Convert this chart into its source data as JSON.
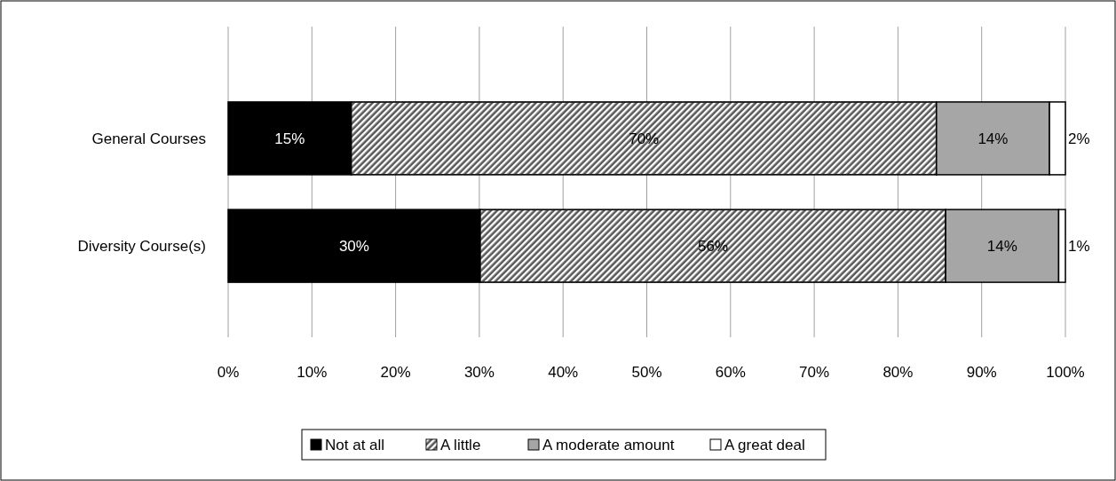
{
  "chart_data": {
    "type": "bar",
    "orientation": "horizontal",
    "stacked": true,
    "categories": [
      "General Courses",
      "Diversity Course(s)"
    ],
    "series": [
      {
        "name": "Not at all",
        "color": "#000000",
        "values": [
          14.7,
          30.1
        ],
        "value_labels": [
          "15%",
          "30%"
        ]
      },
      {
        "name": "A little",
        "color": "#595959",
        "values": [
          69.9,
          55.6
        ],
        "value_labels": [
          "70%",
          "56%"
        ]
      },
      {
        "name": "A moderate amount",
        "color": "#a6a6a6",
        "values": [
          13.5,
          13.5
        ],
        "value_labels": [
          "14%",
          "14%"
        ]
      },
      {
        "name": "A great deal",
        "color": "#ffffff",
        "values": [
          1.9,
          0.8
        ],
        "value_labels": [
          "2%",
          "1%"
        ]
      }
    ],
    "xlim": [
      0,
      100
    ],
    "xticks": [
      {
        "value": 0,
        "label": "0%"
      },
      {
        "value": 10,
        "label": "10%"
      },
      {
        "value": 20,
        "label": "20%"
      },
      {
        "value": 30,
        "label": "30%"
      },
      {
        "value": 40,
        "label": "40%"
      },
      {
        "value": 50,
        "label": "50%"
      },
      {
        "value": 60,
        "label": "60%"
      },
      {
        "value": 70,
        "label": "70%"
      },
      {
        "value": 80,
        "label": "80%"
      },
      {
        "value": 90,
        "label": "90%"
      },
      {
        "value": 100,
        "label": "100%"
      }
    ],
    "grid": "x",
    "legend": "bottom"
  }
}
